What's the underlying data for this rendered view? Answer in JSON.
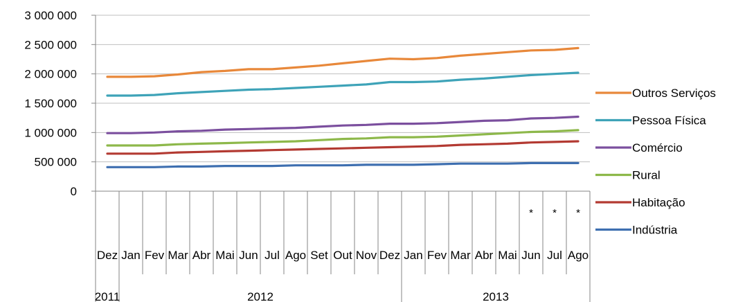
{
  "chart_data": {
    "type": "line",
    "title": "",
    "xlabel": "",
    "ylabel": "",
    "ylim": [
      0,
      3000000
    ],
    "yticks": [
      0,
      500000,
      1000000,
      1500000,
      2000000,
      2500000,
      3000000
    ],
    "ytick_labels": [
      "0",
      "500 000",
      "1 000 000",
      "1 500 000",
      "2 000 000",
      "2 500 000",
      "3 000 000"
    ],
    "grid": "horizontal",
    "legend_position": "right",
    "categories": [
      "Dez",
      "Jan",
      "Fev",
      "Mar",
      "Abr",
      "Mai",
      "Jun",
      "Jul",
      "Ago",
      "Set",
      "Out",
      "Nov",
      "Dez",
      "Jan",
      "Fev",
      "Mar",
      "Abr",
      "Mai",
      "Jun",
      "Jul",
      "Ago"
    ],
    "category_marks": [
      "",
      "",
      "",
      "",
      "",
      "",
      "",
      "",
      "",
      "",
      "",
      "",
      "",
      "",
      "",
      "",
      "",
      "",
      "*",
      "*",
      "*"
    ],
    "years": [
      {
        "label": "2011",
        "start": 0,
        "end": 0
      },
      {
        "label": "2012",
        "start": 1,
        "end": 12
      },
      {
        "label": "2013",
        "start": 13,
        "end": 20
      }
    ],
    "series": [
      {
        "name": "Outros Serviços",
        "color": "#E8883A",
        "values": [
          1950000,
          1950000,
          1960000,
          1990000,
          2030000,
          2050000,
          2080000,
          2080000,
          2110000,
          2140000,
          2180000,
          2220000,
          2260000,
          2250000,
          2270000,
          2310000,
          2340000,
          2370000,
          2400000,
          2410000,
          2440000
        ]
      },
      {
        "name": "Pessoa Física",
        "color": "#3EA3B8",
        "values": [
          1630000,
          1630000,
          1640000,
          1670000,
          1690000,
          1710000,
          1730000,
          1740000,
          1760000,
          1780000,
          1800000,
          1820000,
          1860000,
          1860000,
          1870000,
          1900000,
          1920000,
          1950000,
          1980000,
          2000000,
          2020000
        ]
      },
      {
        "name": "Comércio",
        "color": "#7B4F9E",
        "values": [
          990000,
          990000,
          1000000,
          1020000,
          1030000,
          1050000,
          1060000,
          1070000,
          1080000,
          1100000,
          1120000,
          1130000,
          1150000,
          1150000,
          1160000,
          1180000,
          1200000,
          1210000,
          1240000,
          1250000,
          1270000
        ]
      },
      {
        "name": "Rural",
        "color": "#8DB84A",
        "values": [
          780000,
          780000,
          780000,
          800000,
          810000,
          820000,
          830000,
          840000,
          850000,
          870000,
          890000,
          900000,
          920000,
          920000,
          930000,
          950000,
          970000,
          990000,
          1010000,
          1020000,
          1040000
        ]
      },
      {
        "name": "Habitação",
        "color": "#B33A32",
        "values": [
          640000,
          640000,
          640000,
          660000,
          670000,
          680000,
          690000,
          700000,
          710000,
          720000,
          730000,
          740000,
          750000,
          760000,
          770000,
          790000,
          800000,
          810000,
          830000,
          840000,
          850000
        ]
      },
      {
        "name": "Indústria",
        "color": "#3E6FB0",
        "values": [
          410000,
          410000,
          410000,
          420000,
          420000,
          430000,
          430000,
          430000,
          440000,
          440000,
          440000,
          450000,
          450000,
          450000,
          460000,
          470000,
          470000,
          470000,
          480000,
          480000,
          480000
        ]
      }
    ]
  }
}
